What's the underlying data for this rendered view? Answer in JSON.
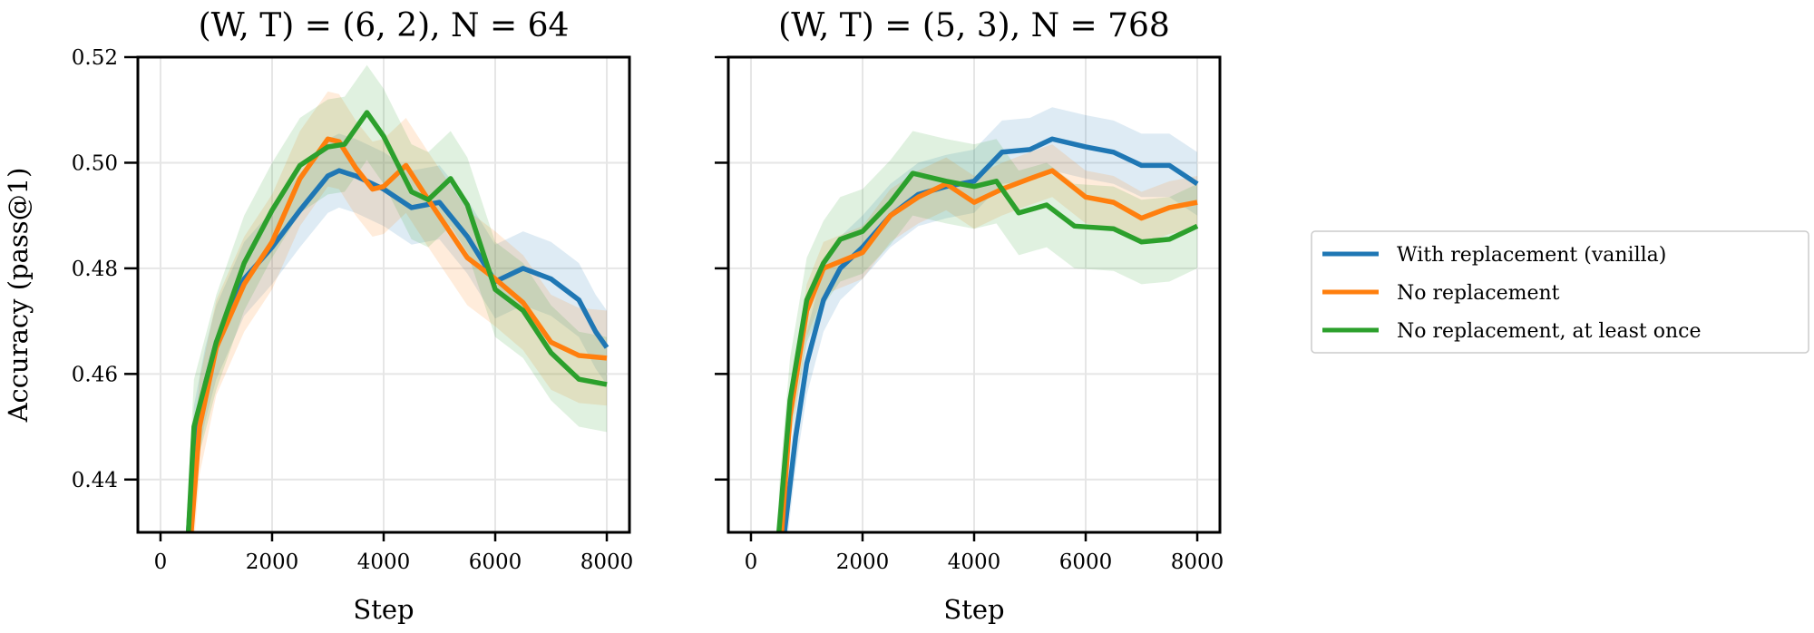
{
  "chart_data": [
    {
      "type": "line",
      "title": "(W, T) = (6, 2), N = 64",
      "xlabel": "Step",
      "ylabel": "Accuracy (pass@1)",
      "xlim": [
        -406,
        8406
      ],
      "ylim": [
        0.43,
        0.52
      ],
      "xticks": [
        "0",
        "2000",
        "4000",
        "6000",
        "8000"
      ],
      "yticks": [
        "0.44",
        "0.46",
        "0.48",
        "0.50",
        "0.52"
      ],
      "grid": true,
      "series": [
        {
          "name": "With replacement (vanilla)",
          "color": "#1f77b4",
          "band": 0.007,
          "x": [
            500,
            600,
            800,
            1000,
            1500,
            2000,
            2500,
            3000,
            3200,
            3500,
            4000,
            4500,
            5000,
            5500,
            6000,
            6500,
            7000,
            7500,
            7800,
            8000
          ],
          "y": [
            0.43,
            0.447,
            0.458,
            0.466,
            0.478,
            0.484,
            0.491,
            0.4975,
            0.4985,
            0.4975,
            0.495,
            0.4915,
            0.4925,
            0.486,
            0.4775,
            0.48,
            0.478,
            0.474,
            0.468,
            0.465
          ]
        },
        {
          "name": "No replacement",
          "color": "#ff7f0e",
          "band": 0.009,
          "x": [
            550,
            700,
            1000,
            1500,
            2000,
            2500,
            3000,
            3200,
            3500,
            3800,
            4000,
            4400,
            4800,
            5500,
            6000,
            6500,
            7000,
            7500,
            8000
          ],
          "y": [
            0.43,
            0.45,
            0.465,
            0.477,
            0.485,
            0.497,
            0.5045,
            0.504,
            0.499,
            0.495,
            0.4955,
            0.4995,
            0.493,
            0.482,
            0.478,
            0.4735,
            0.466,
            0.4635,
            0.463
          ]
        },
        {
          "name": "No replacement, at least once",
          "color": "#2ca02c",
          "band": 0.009,
          "x": [
            500,
            600,
            1000,
            1500,
            2000,
            2500,
            3000,
            3300,
            3700,
            4000,
            4500,
            4800,
            5200,
            5500,
            6000,
            6500,
            7000,
            7500,
            8000
          ],
          "y": [
            0.43,
            0.45,
            0.466,
            0.481,
            0.491,
            0.4995,
            0.503,
            0.5035,
            0.5095,
            0.505,
            0.4945,
            0.493,
            0.497,
            0.492,
            0.476,
            0.472,
            0.464,
            0.459,
            0.458
          ]
        }
      ]
    },
    {
      "type": "line",
      "title": "(W, T) = (5, 3), N = 768",
      "xlabel": "Step",
      "ylabel": "",
      "xlim": [
        -406,
        8406
      ],
      "ylim": [
        0.43,
        0.52
      ],
      "xticks": [
        "0",
        "2000",
        "4000",
        "6000",
        "8000"
      ],
      "yticks": [],
      "grid": true,
      "series": [
        {
          "name": "With replacement (vanilla)",
          "color": "#1f77b4",
          "band": 0.006,
          "x": [
            600,
            800,
            1000,
            1300,
            1600,
            2000,
            2500,
            3000,
            3500,
            4000,
            4500,
            5000,
            5400,
            6000,
            6500,
            7000,
            7500,
            8000
          ],
          "y": [
            0.43,
            0.448,
            0.462,
            0.474,
            0.48,
            0.484,
            0.49,
            0.494,
            0.4955,
            0.4965,
            0.502,
            0.5025,
            0.5045,
            0.503,
            0.502,
            0.4995,
            0.4995,
            0.496
          ]
        },
        {
          "name": "No replacement",
          "color": "#ff7f0e",
          "band": 0.005,
          "x": [
            550,
            700,
            1000,
            1300,
            2000,
            2500,
            3000,
            3500,
            4000,
            4500,
            5000,
            5400,
            6000,
            6500,
            7000,
            7500,
            8000
          ],
          "y": [
            0.43,
            0.452,
            0.472,
            0.48,
            0.483,
            0.49,
            0.4935,
            0.496,
            0.4925,
            0.495,
            0.497,
            0.4985,
            0.4935,
            0.4925,
            0.4895,
            0.4915,
            0.4925
          ]
        },
        {
          "name": "No replacement, at least once",
          "color": "#2ca02c",
          "band": 0.008,
          "x": [
            500,
            700,
            1000,
            1300,
            1600,
            2000,
            2500,
            2900,
            3500,
            4000,
            4400,
            4800,
            5300,
            5800,
            6500,
            7000,
            7500,
            8000
          ],
          "y": [
            0.43,
            0.455,
            0.474,
            0.481,
            0.4855,
            0.487,
            0.4925,
            0.498,
            0.4965,
            0.4955,
            0.4965,
            0.4905,
            0.492,
            0.488,
            0.4875,
            0.485,
            0.4855,
            0.488
          ]
        }
      ]
    }
  ],
  "legend": {
    "position": "right",
    "entries": [
      "With replacement (vanilla)",
      "No replacement",
      "No replacement, at least once"
    ]
  }
}
